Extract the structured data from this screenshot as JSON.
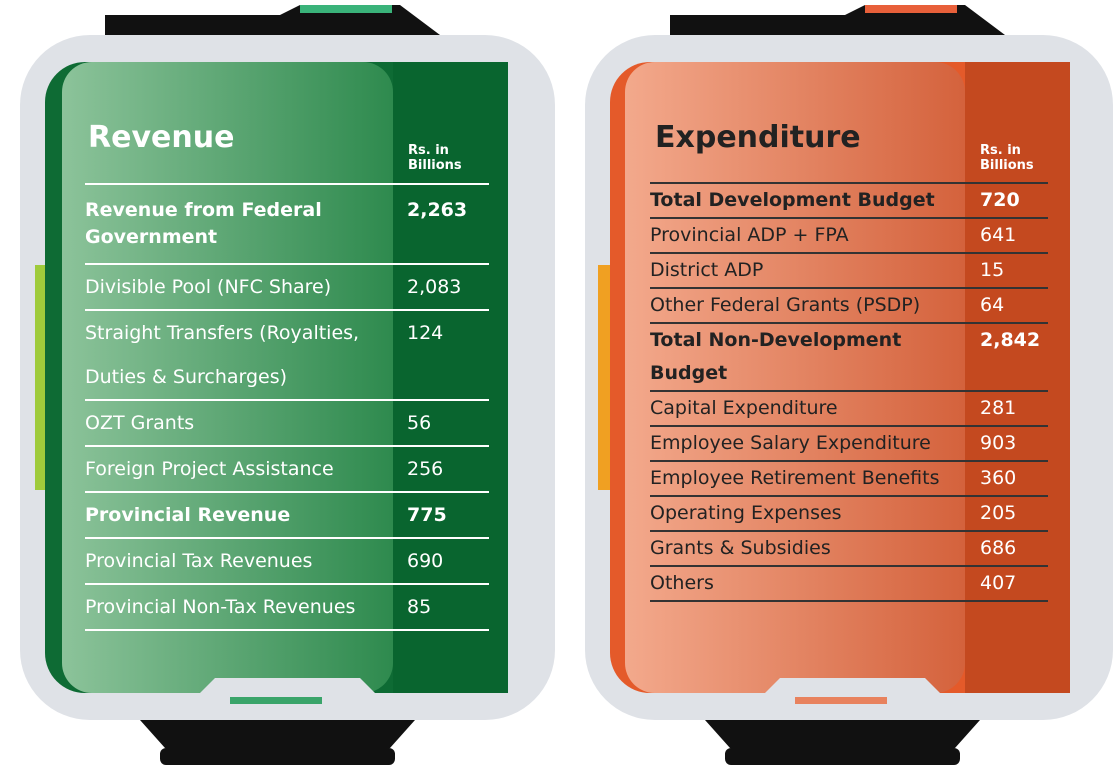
{
  "panels": [
    {
      "title": "Revenue",
      "unit": "Rs. in Billions",
      "rows": [
        {
          "label": "Revenue from Federal Government",
          "value": "2,263",
          "bold": true
        },
        {
          "label": "Divisible Pool (NFC Share)",
          "value": "2,083",
          "bold": false
        },
        {
          "label": "Straight Transfers (Royalties, Duties & Surcharges)",
          "value": "124",
          "bold": false
        },
        {
          "label": "OZT Grants",
          "value": "56",
          "bold": false
        },
        {
          "label": "Foreign Project Assistance",
          "value": "256",
          "bold": false
        },
        {
          "label": "Provincial Revenue",
          "value": "775",
          "bold": true
        },
        {
          "label": "Provincial Tax Revenues",
          "value": "690",
          "bold": false
        },
        {
          "label": "Provincial Non-Tax Revenues",
          "value": "85",
          "bold": false
        }
      ]
    },
    {
      "title": "Expenditure",
      "unit": "Rs. in Billions",
      "rows": [
        {
          "label": "Total Development Budget",
          "value": "720",
          "bold": true
        },
        {
          "label": "Provincial ADP + FPA",
          "value": "641",
          "bold": false
        },
        {
          "label": "District ADP",
          "value": "15",
          "bold": false
        },
        {
          "label": "Other Federal Grants (PSDP)",
          "value": "64",
          "bold": false
        },
        {
          "label": "Total Non-Development Budget",
          "value": "2,842",
          "bold": true
        },
        {
          "label": "Capital Expenditure",
          "value": "281",
          "bold": false
        },
        {
          "label": "Employee Salary Expenditure",
          "value": "903",
          "bold": false
        },
        {
          "label": "Employee Retirement Benefits",
          "value": "360",
          "bold": false
        },
        {
          "label": "Operating Expenses",
          "value": "205",
          "bold": false
        },
        {
          "label": "Grants & Subsidies",
          "value": "686",
          "bold": false
        },
        {
          "label": "Others",
          "value": "407",
          "bold": false
        }
      ]
    }
  ]
}
